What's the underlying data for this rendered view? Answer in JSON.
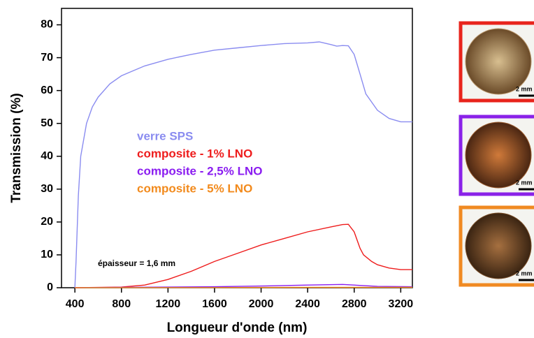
{
  "chart_data": {
    "type": "line",
    "xlabel": "Longueur d'onde (nm)",
    "ylabel": "Transmission (%)",
    "annotation": "épaisseur = 1,6 mm",
    "xlim": [
      285,
      3300
    ],
    "xticks": [
      400,
      800,
      1200,
      1600,
      2000,
      2400,
      2800,
      3200
    ],
    "ylim": [
      0,
      85
    ],
    "yticks": [
      0,
      10,
      20,
      30,
      40,
      50,
      60,
      70,
      80
    ],
    "series": [
      {
        "name": "verre SPS",
        "color": "#8a8cf0",
        "x": [
          400,
          410,
          430,
          450,
          500,
          550,
          600,
          700,
          800,
          900,
          1000,
          1200,
          1400,
          1600,
          1800,
          2000,
          2200,
          2400,
          2500,
          2600,
          2650,
          2700,
          2750,
          2800,
          2850,
          2900,
          3000,
          3100,
          3200,
          3300
        ],
        "values": [
          0,
          8,
          28,
          40,
          50,
          55,
          58,
          62,
          64.5,
          66,
          67.5,
          69.5,
          71,
          72.3,
          73,
          73.7,
          74.3,
          74.5,
          74.8,
          74,
          73.5,
          73.7,
          73.6,
          71,
          65,
          59,
          54,
          51.5,
          50.5,
          50.5
        ]
      },
      {
        "name": "composite - 1% LNO",
        "color": "#ee1c1c",
        "x": [
          400,
          800,
          1000,
          1200,
          1400,
          1600,
          1800,
          2000,
          2200,
          2400,
          2600,
          2700,
          2750,
          2800,
          2850,
          2880,
          2950,
          3000,
          3100,
          3200,
          3300
        ],
        "values": [
          0,
          0.2,
          0.8,
          2.5,
          5,
          8,
          10.5,
          13,
          15,
          17,
          18.5,
          19.2,
          19.3,
          17,
          12,
          10,
          8,
          7,
          6,
          5.5,
          5.5
        ]
      },
      {
        "name": "composite - 2,5% LNO",
        "color": "#8a1cf0",
        "x": [
          400,
          1600,
          2000,
          2400,
          2700,
          2800,
          3000,
          3300
        ],
        "values": [
          0,
          0.3,
          0.5,
          0.8,
          1,
          0.8,
          0.4,
          0.3
        ]
      },
      {
        "name": "composite - 5% LNO",
        "color": "#f28a1c",
        "x": [
          400,
          1600,
          2400,
          3300
        ],
        "values": [
          0,
          0.05,
          0.1,
          0.1
        ]
      }
    ]
  },
  "photos": [
    {
      "border": "#e8241c",
      "tone": "#b8956a",
      "scale": "2 mm"
    },
    {
      "border": "#8a22e8",
      "tone": "#9a5a2c",
      "scale": "2 mm"
    },
    {
      "border": "#f08a22",
      "tone": "#7a4e28",
      "scale": "2 mm"
    }
  ]
}
